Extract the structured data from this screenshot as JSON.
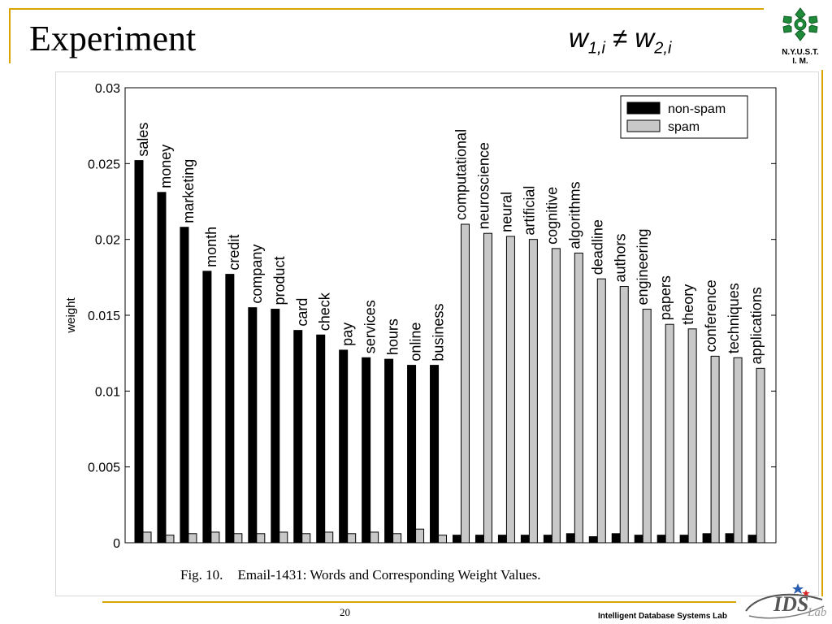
{
  "slide": {
    "title": "Experiment",
    "formula_left": "w",
    "formula_left_sub": "1,i",
    "formula_op": " ≠ ",
    "formula_right": "w",
    "formula_right_sub": "2,i",
    "logo_line1": "N.Y.U.S.T.",
    "logo_line2": "I. M.",
    "caption_fig": "Fig. 10.",
    "caption_text": "Email-1431: Words and Corresponding Weight Values.",
    "page_number": "20",
    "lab_name": "Intelligent Database Systems Lab",
    "lab_logo_text": "IDS",
    "lab_logo_script": "Lab",
    "accent_color": "#d9a400",
    "logo_color": "#1e8a3a"
  },
  "chart_data": {
    "type": "bar",
    "title": "",
    "xlabel": "",
    "ylabel": "weight",
    "ylim": [
      0,
      0.03
    ],
    "yticks": [
      "0",
      "0.005",
      "0.01",
      "0.015",
      "0.02",
      "0.025",
      "0.03"
    ],
    "ytick_values": [
      0,
      0.005,
      0.01,
      0.015,
      0.02,
      0.025,
      0.03
    ],
    "legend_position": "top-right",
    "grid": false,
    "categories": [
      "sales",
      "money",
      "marketing",
      "month",
      "credit",
      "company",
      "product",
      "card",
      "check",
      "pay",
      "services",
      "hours",
      "online",
      "business",
      "computational",
      "neuroscience",
      "neural",
      "artificial",
      "cognitive",
      "algorithms",
      "deadline",
      "authors",
      "engineering",
      "papers",
      "theory",
      "conference",
      "techniques",
      "applications"
    ],
    "series": [
      {
        "name": "non-spam",
        "color": "#000000",
        "values": [
          0.0252,
          0.0231,
          0.0208,
          0.0179,
          0.0177,
          0.0155,
          0.0154,
          0.014,
          0.0137,
          0.0127,
          0.0122,
          0.0121,
          0.0117,
          0.0117,
          0.0005,
          0.0005,
          0.0005,
          0.0005,
          0.0005,
          0.0006,
          0.0004,
          0.0006,
          0.0005,
          0.0005,
          0.0005,
          0.0006,
          0.0006,
          0.0005
        ]
      },
      {
        "name": "spam",
        "color": "#c8c8c8",
        "values": [
          0.0007,
          0.0005,
          0.0006,
          0.0007,
          0.0006,
          0.0006,
          0.0007,
          0.0006,
          0.0007,
          0.0006,
          0.0007,
          0.0006,
          0.0009,
          0.0005,
          0.021,
          0.0204,
          0.0202,
          0.02,
          0.0194,
          0.0191,
          0.0174,
          0.0169,
          0.0154,
          0.0144,
          0.0141,
          0.0123,
          0.0122,
          0.0115
        ]
      }
    ]
  }
}
